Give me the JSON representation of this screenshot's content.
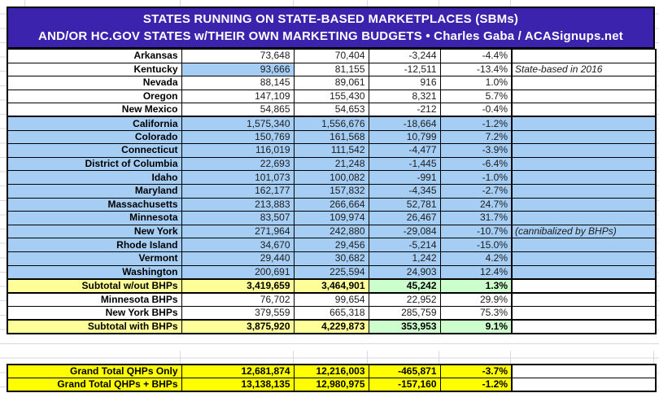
{
  "header": {
    "line1": "STATES RUNNING ON STATE-BASED MARKETPLACES (SBMs)",
    "line2": "AND/OR HC.GOV STATES w/THEIR OWN MARKETING BUDGETS • Charles Gaba / ACASignups.net"
  },
  "colors": {
    "banner_bg": "#3C23AE",
    "banner_text": "#FFFFFF",
    "row_blue": "#A6CEF5",
    "subtotal_yellow": "#FFFF99",
    "subtotal_green": "#CCFFCC",
    "grand_total_yellow": "#FFFF00",
    "border": "#000000"
  },
  "chart_data": {
    "type": "table",
    "title": "STATES RUNNING ON STATE-BASED MARKETPLACES (SBMs) AND/OR HC.GOV STATES w/THEIR OWN MARKETING BUDGETS",
    "attribution": "Charles Gaba / ACASignups.net",
    "rows": [
      {
        "name": "Arkansas",
        "values": [
          "73,648",
          "70,404",
          "-3,244",
          "-4.4%"
        ],
        "note": "",
        "style": "white"
      },
      {
        "name": "Kentucky",
        "values": [
          "93,666",
          "81,155",
          "-12,511",
          "-13.4%"
        ],
        "note": "State-based in 2016",
        "style": "white",
        "value1_highlight": true
      },
      {
        "name": "Nevada",
        "values": [
          "88,145",
          "89,061",
          "916",
          "1.0%"
        ],
        "note": "",
        "style": "white"
      },
      {
        "name": "Oregon",
        "values": [
          "147,109",
          "155,430",
          "8,321",
          "5.7%"
        ],
        "note": "",
        "style": "white"
      },
      {
        "name": "New Mexico",
        "values": [
          "54,865",
          "54,653",
          "-212",
          "-0.4%"
        ],
        "note": "",
        "style": "white",
        "divider_below": true
      },
      {
        "name": "California",
        "values": [
          "1,575,340",
          "1,556,676",
          "-18,664",
          "-1.2%"
        ],
        "note": "",
        "style": "blue"
      },
      {
        "name": "Colorado",
        "values": [
          "150,769",
          "161,568",
          "10,799",
          "7.2%"
        ],
        "note": "",
        "style": "blue"
      },
      {
        "name": "Connecticut",
        "values": [
          "116,019",
          "111,542",
          "-4,477",
          "-3.9%"
        ],
        "note": "",
        "style": "blue"
      },
      {
        "name": "District of Columbia",
        "values": [
          "22,693",
          "21,248",
          "-1,445",
          "-6.4%"
        ],
        "note": "",
        "style": "blue"
      },
      {
        "name": "Idaho",
        "values": [
          "101,073",
          "100,082",
          "-991",
          "-1.0%"
        ],
        "note": "",
        "style": "blue"
      },
      {
        "name": "Maryland",
        "values": [
          "162,177",
          "157,832",
          "-4,345",
          "-2.7%"
        ],
        "note": "",
        "style": "blue"
      },
      {
        "name": "Massachusetts",
        "values": [
          "213,883",
          "266,664",
          "52,781",
          "24.7%"
        ],
        "note": "",
        "style": "blue"
      },
      {
        "name": "Minnesota",
        "values": [
          "83,507",
          "109,974",
          "26,467",
          "31.7%"
        ],
        "note": "",
        "style": "blue"
      },
      {
        "name": "New York",
        "values": [
          "271,964",
          "242,880",
          "-29,084",
          "-10.7%"
        ],
        "note": "(cannibalized by BHPs)",
        "style": "blue"
      },
      {
        "name": "Rhode Island",
        "values": [
          "34,670",
          "29,456",
          "-5,214",
          "-15.0%"
        ],
        "note": "",
        "style": "blue"
      },
      {
        "name": "Vermont",
        "values": [
          "29,440",
          "30,682",
          "1,242",
          "4.2%"
        ],
        "note": "",
        "style": "blue"
      },
      {
        "name": "Washington",
        "values": [
          "200,691",
          "225,594",
          "24,903",
          "12.4%"
        ],
        "note": "",
        "style": "blue"
      },
      {
        "name": "Subtotal w/out BHPs",
        "values": [
          "3,419,659",
          "3,464,901",
          "45,242",
          "1.3%"
        ],
        "note": "",
        "style": "subtotal"
      },
      {
        "name": "Minnesota BHPs",
        "values": [
          "76,702",
          "99,654",
          "22,952",
          "29.9%"
        ],
        "note": "",
        "style": "white"
      },
      {
        "name": "New York BHPs",
        "values": [
          "379,559",
          "665,318",
          "285,759",
          "75.3%"
        ],
        "note": "",
        "style": "white"
      },
      {
        "name": "Subtotal with BHPs",
        "values": [
          "3,875,920",
          "4,229,873",
          "353,953",
          "9.1%"
        ],
        "note": "",
        "style": "subtotal"
      }
    ],
    "grand_rows": [
      {
        "name": "Grand Total QHPs Only",
        "values": [
          "12,681,874",
          "12,216,003",
          "-465,871",
          "-3.7%"
        ],
        "note": "",
        "style": "grand"
      },
      {
        "name": "Grand Total QHPs + BHPs",
        "values": [
          "13,138,135",
          "12,980,975",
          "-157,160",
          "-1.2%"
        ],
        "note": "",
        "style": "grand"
      }
    ]
  }
}
